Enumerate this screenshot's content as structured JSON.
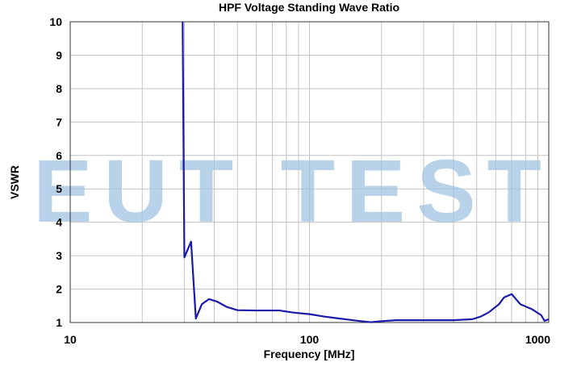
{
  "chart_data": {
    "type": "line",
    "title": "HPF Voltage Standing Wave Ratio",
    "xlabel": "Frequency [MHz]",
    "ylabel": "VSWR",
    "x_scale": "log",
    "xlim": [
      10,
      1000
    ],
    "ylim": [
      1,
      10
    ],
    "x_ticks": [
      10,
      100,
      1000
    ],
    "x_tick_labels": [
      "10",
      "100",
      "1000"
    ],
    "y_ticks": [
      1,
      2,
      3,
      4,
      5,
      6,
      7,
      8,
      9,
      10
    ],
    "y_tick_labels": [
      "1",
      "2",
      "3",
      "4",
      "5",
      "6",
      "7",
      "8",
      "9",
      "10"
    ],
    "grid": true,
    "series": [
      {
        "color": "#1a1aaa",
        "x": [
          29.5,
          30.0,
          32.0,
          33.5,
          35.5,
          38.0,
          41.0,
          45.0,
          50.0,
          60.0,
          75.0,
          85.0,
          100.0,
          115.0,
          130.0,
          160.0,
          180.0,
          200.0,
          230.0,
          300.0,
          400.0,
          480.0,
          520.0,
          560.0,
          620.0,
          650.0,
          700.0,
          760.0,
          850.0,
          930.0,
          960.0,
          1000.0
        ],
        "y": [
          10.0,
          2.95,
          3.42,
          1.12,
          1.55,
          1.7,
          1.63,
          1.47,
          1.37,
          1.36,
          1.36,
          1.3,
          1.25,
          1.18,
          1.13,
          1.05,
          1.01,
          1.04,
          1.07,
          1.07,
          1.07,
          1.1,
          1.18,
          1.3,
          1.55,
          1.75,
          1.85,
          1.55,
          1.4,
          1.22,
          1.05,
          1.1
        ]
      }
    ]
  },
  "watermark": {
    "text": "EUT TEST",
    "color": "#9fc3e2"
  }
}
